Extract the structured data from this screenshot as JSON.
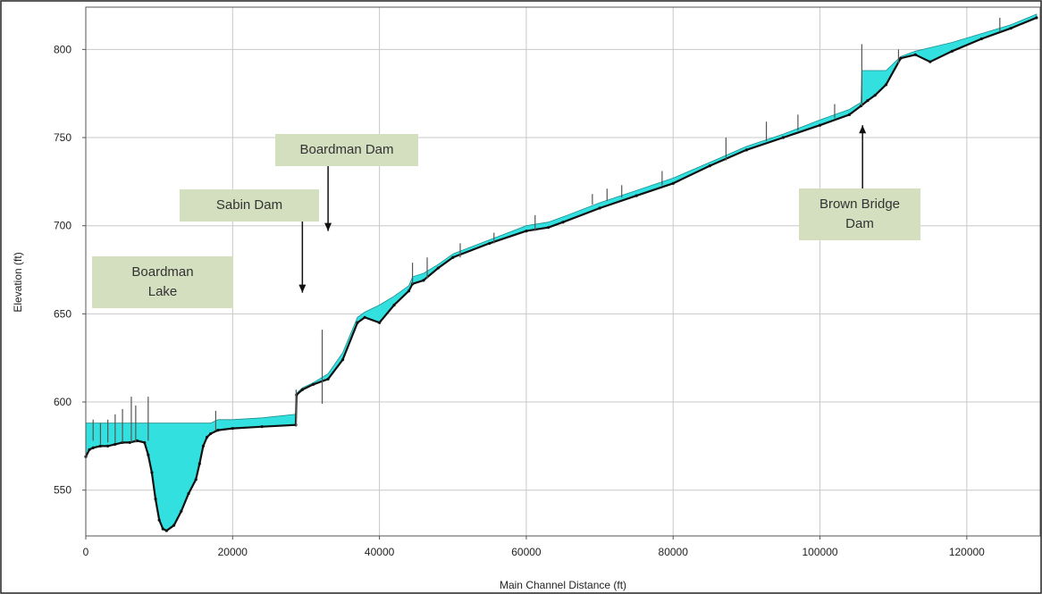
{
  "chart_data": {
    "type": "line",
    "xlabel": "Main Channel Distance (ft)",
    "ylabel": "Elevation (ft)",
    "xlim": [
      0,
      130000
    ],
    "ylim": [
      524,
      824
    ],
    "xticks": [
      0,
      20000,
      40000,
      60000,
      80000,
      100000,
      120000
    ],
    "yticks": [
      550,
      600,
      650,
      700,
      750,
      800
    ],
    "grid": true,
    "colors": {
      "water": "#33e0e0",
      "bed": "#111111",
      "grid": "#c8c8c8",
      "annotation_bg": "#d4dfc0"
    },
    "series": [
      {
        "role": "water-surface",
        "x": [
          0,
          1000,
          5000,
          10000,
          15000,
          17000,
          18000,
          20000,
          24000,
          28600,
          28700,
          29500,
          31000,
          33000,
          35000,
          37000,
          38000,
          40000,
          42000,
          44000,
          44500,
          46000,
          48000,
          50000,
          55000,
          60000,
          63000,
          65000,
          70000,
          75000,
          80000,
          85000,
          90000,
          95000,
          100000,
          104000,
          105600,
          105700,
          107500,
          109000,
          111000,
          113000,
          115000,
          118000,
          122000,
          126000,
          129500
        ],
        "y": [
          588,
          588,
          588,
          588,
          588,
          588,
          590,
          590,
          591,
          593,
          605,
          608,
          611,
          616,
          628,
          648,
          651,
          655,
          660,
          666,
          671,
          673,
          678,
          684,
          692,
          700,
          702,
          705,
          713,
          720,
          727,
          736,
          745,
          752,
          760,
          766,
          770,
          788,
          788,
          788,
          796,
          799,
          801,
          804,
          809,
          814,
          820
        ]
      },
      {
        "role": "channel-bed",
        "x": [
          0,
          500,
          1000,
          2000,
          3000,
          4000,
          5000,
          6000,
          7000,
          8000,
          8500,
          9000,
          9500,
          10000,
          10500,
          11000,
          12000,
          13000,
          14000,
          15000,
          15500,
          16000,
          16500,
          17000,
          18000,
          20000,
          24000,
          28600,
          28700,
          29500,
          31000,
          33000,
          35000,
          37000,
          38000,
          40000,
          42000,
          44000,
          44500,
          46000,
          48000,
          50000,
          55000,
          60000,
          63000,
          65000,
          70000,
          75000,
          80000,
          85000,
          90000,
          95000,
          100000,
          104000,
          105600,
          106500,
          107500,
          109000,
          111000,
          113000,
          115000,
          118000,
          122000,
          126000,
          129500
        ],
        "y": [
          569,
          573,
          574,
          575,
          575,
          576,
          577,
          577,
          578,
          577,
          570,
          560,
          545,
          533,
          528,
          527,
          530,
          538,
          548,
          556,
          565,
          575,
          580,
          582,
          584,
          585,
          586,
          587,
          604,
          607,
          610,
          613,
          624,
          645,
          648,
          645,
          655,
          663,
          667,
          669,
          676,
          682,
          690,
          697,
          699,
          702,
          710,
          717,
          724,
          734,
          743,
          750,
          757,
          763,
          768,
          771,
          774,
          780,
          795,
          797,
          793,
          799,
          806,
          812,
          818
        ]
      }
    ],
    "spikes": [
      {
        "x": 1000,
        "y0": 578,
        "y1": 590
      },
      {
        "x": 2000,
        "y0": 576,
        "y1": 588
      },
      {
        "x": 3000,
        "y0": 577,
        "y1": 590
      },
      {
        "x": 4000,
        "y0": 577,
        "y1": 593
      },
      {
        "x": 5000,
        "y0": 577,
        "y1": 596
      },
      {
        "x": 6200,
        "y0": 577,
        "y1": 603
      },
      {
        "x": 6800,
        "y0": 577,
        "y1": 598
      },
      {
        "x": 8500,
        "y0": 578,
        "y1": 603
      },
      {
        "x": 17700,
        "y0": 584,
        "y1": 595
      },
      {
        "x": 28650,
        "y0": 586,
        "y1": 607
      },
      {
        "x": 32200,
        "y0": 599,
        "y1": 641
      },
      {
        "x": 44500,
        "y0": 667,
        "y1": 679
      },
      {
        "x": 46500,
        "y0": 670,
        "y1": 682
      },
      {
        "x": 51000,
        "y0": 682,
        "y1": 690
      },
      {
        "x": 55600,
        "y0": 690,
        "y1": 696
      },
      {
        "x": 61200,
        "y0": 697,
        "y1": 706
      },
      {
        "x": 69000,
        "y0": 712,
        "y1": 718
      },
      {
        "x": 71000,
        "y0": 714,
        "y1": 721
      },
      {
        "x": 73000,
        "y0": 716,
        "y1": 723
      },
      {
        "x": 78500,
        "y0": 723,
        "y1": 731
      },
      {
        "x": 87200,
        "y0": 737,
        "y1": 750
      },
      {
        "x": 92700,
        "y0": 748,
        "y1": 759
      },
      {
        "x": 97000,
        "y0": 754,
        "y1": 763
      },
      {
        "x": 102000,
        "y0": 761,
        "y1": 769
      },
      {
        "x": 105700,
        "y0": 768,
        "y1": 803
      },
      {
        "x": 110700,
        "y0": 792,
        "y1": 800
      },
      {
        "x": 124500,
        "y0": 810,
        "y1": 818
      }
    ],
    "annotations": [
      {
        "id": "boardman-lake",
        "text": "Boardman\nLake",
        "arrow": false
      },
      {
        "id": "sabin-dam",
        "text": "Sabin Dam",
        "arrow": true,
        "arrow_x": 29500,
        "arrow_y_from": 705,
        "arrow_y_to": 662
      },
      {
        "id": "boardman-dam",
        "text": "Boardman  Dam",
        "arrow": true,
        "arrow_x": 33000,
        "arrow_y_from": 735,
        "arrow_y_to": 697
      },
      {
        "id": "brown-bridge-dam",
        "text": "Brown Bridge\nDam",
        "arrow": true,
        "arrow_x": 105800,
        "arrow_y_from": 721,
        "arrow_y_to": 757
      }
    ]
  }
}
